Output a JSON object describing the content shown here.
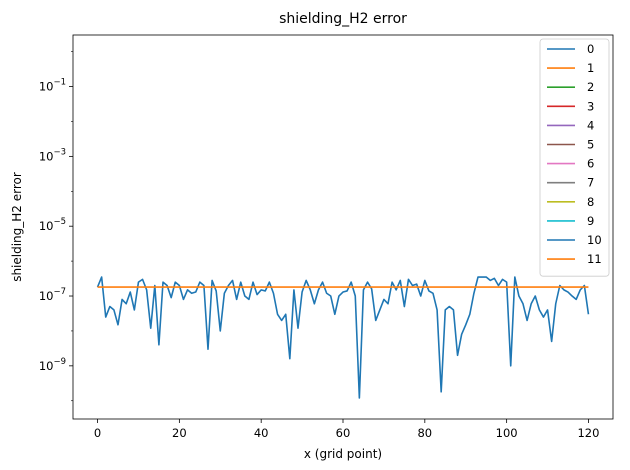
{
  "chart_data": {
    "type": "line",
    "title": "shielding_H2 error",
    "xlabel": "x (grid point)",
    "ylabel": "shielding_H2 error",
    "xlim": [
      -6,
      126
    ],
    "ylim": [
      3e-11,
      3
    ],
    "yscale": "log",
    "xticks": [
      0,
      20,
      40,
      60,
      80,
      100,
      120
    ],
    "yticks": [
      {
        "value": 1e-09,
        "base": "10",
        "exp": "−9"
      },
      {
        "value": 1e-07,
        "base": "10",
        "exp": "−7"
      },
      {
        "value": 1e-05,
        "base": "10",
        "exp": "−5"
      },
      {
        "value": 0.001,
        "base": "10",
        "exp": "−3"
      },
      {
        "value": 0.1,
        "base": "10",
        "exp": "−1"
      }
    ],
    "grid": false,
    "legend_position": "top-right",
    "series": [
      {
        "name": "0",
        "color": "#1f77b4"
      },
      {
        "name": "1",
        "color": "#ff7f0e"
      },
      {
        "name": "2",
        "color": "#2ca02c"
      },
      {
        "name": "3",
        "color": "#d62728"
      },
      {
        "name": "4",
        "color": "#9467bd"
      },
      {
        "name": "5",
        "color": "#8c564b"
      },
      {
        "name": "6",
        "color": "#e377c2"
      },
      {
        "name": "7",
        "color": "#7f7f7f"
      },
      {
        "name": "8",
        "color": "#bcbd22"
      },
      {
        "name": "9",
        "color": "#17becf"
      },
      {
        "name": "10",
        "color": "#1f77b4",
        "x": [
          0,
          1,
          2,
          3,
          4,
          5,
          6,
          7,
          8,
          9,
          10,
          11,
          12,
          13,
          14,
          15,
          16,
          17,
          18,
          19,
          20,
          21,
          22,
          23,
          24,
          25,
          26,
          27,
          28,
          29,
          30,
          31,
          32,
          33,
          34,
          35,
          36,
          37,
          38,
          39,
          40,
          41,
          42,
          43,
          44,
          45,
          46,
          47,
          48,
          49,
          50,
          51,
          52,
          53,
          54,
          55,
          56,
          57,
          58,
          59,
          60,
          61,
          62,
          63,
          64,
          65,
          66,
          67,
          68,
          69,
          70,
          71,
          72,
          73,
          74,
          75,
          76,
          77,
          78,
          79,
          80,
          81,
          82,
          83,
          84,
          85,
          86,
          87,
          88,
          89,
          90,
          91,
          92,
          93,
          94,
          95,
          96,
          97,
          98,
          99,
          100,
          101,
          102,
          103,
          104,
          105,
          106,
          107,
          108,
          109,
          110,
          111,
          112,
          113,
          114,
          115,
          116,
          117,
          118,
          119,
          120
        ],
        "y": [
          1.8e-07,
          3.5e-07,
          2.5e-08,
          5e-08,
          4e-08,
          1.5e-08,
          8e-08,
          6e-08,
          1.3e-07,
          4e-08,
          2.5e-07,
          3e-07,
          1.5e-07,
          1.2e-08,
          2e-07,
          4e-09,
          2.5e-07,
          2e-07,
          9e-08,
          2.5e-07,
          2e-07,
          8e-08,
          1.5e-07,
          1.2e-07,
          1.3e-07,
          2.5e-07,
          2e-07,
          3e-09,
          2.8e-07,
          1.4e-07,
          1e-08,
          1.2e-07,
          2e-07,
          2.8e-07,
          8e-08,
          2.5e-07,
          1e-07,
          8e-08,
          2.5e-07,
          1.1e-07,
          1.5e-07,
          1.4e-07,
          2.5e-07,
          1.2e-07,
          3e-08,
          2e-08,
          3e-08,
          1.6e-09,
          1.5e-07,
          1.2e-08,
          1.3e-07,
          2.8e-07,
          1.5e-07,
          6e-08,
          1.5e-07,
          2.5e-07,
          1.2e-07,
          1e-07,
          3e-08,
          1e-07,
          1.3e-07,
          1.4e-07,
          2.5e-07,
          1e-07,
          1.2e-10,
          1.5e-07,
          2.5e-07,
          1.6e-07,
          2e-08,
          4e-08,
          8e-08,
          6e-08,
          2.5e-07,
          1.5e-07,
          2.8e-07,
          5e-08,
          3e-07,
          2e-07,
          2.2e-07,
          1e-07,
          2.8e-07,
          1.4e-07,
          1.2e-07,
          4e-08,
          1.8e-10,
          4e-08,
          5e-08,
          4e-08,
          2e-09,
          8e-09,
          1.5e-08,
          3e-08,
          1.2e-07,
          3.5e-07,
          3.5e-07,
          3.5e-07,
          2.8e-07,
          3.2e-07,
          2e-07,
          3e-07,
          2.5e-07,
          1e-09,
          3.5e-07,
          1e-07,
          6e-08,
          2e-08,
          6e-08,
          1e-07,
          4e-08,
          2.5e-08,
          4e-08,
          5e-09,
          6e-08,
          2e-07,
          1.5e-07,
          1.3e-07,
          1e-07,
          8e-08,
          1.5e-07,
          2e-07,
          3e-08
        ]
      },
      {
        "name": "11",
        "color": "#ff7f0e",
        "x": [
          0,
          120
        ],
        "y": [
          1.8e-07,
          1.8e-07
        ]
      }
    ]
  }
}
